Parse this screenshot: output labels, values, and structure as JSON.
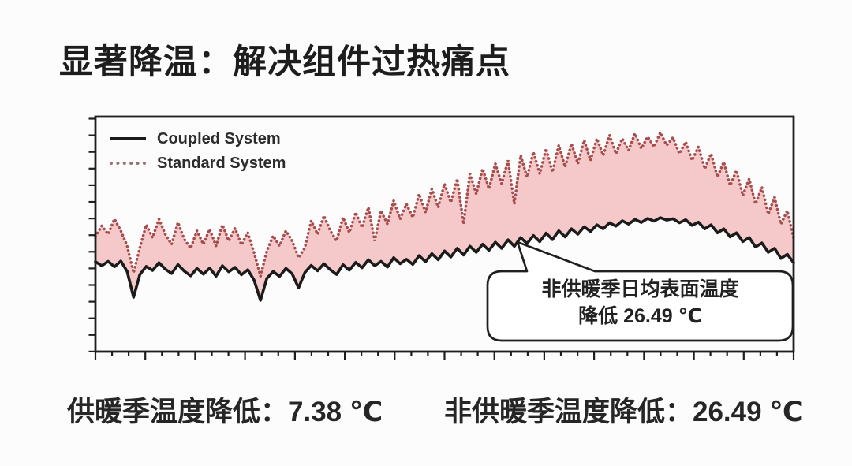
{
  "title": "显著降温：解决组件过热痛点",
  "legend": [
    {
      "label": "Coupled System"
    },
    {
      "label": "Standard System"
    }
  ],
  "callout": {
    "line1": "非供暖季日均表面温度",
    "line2": "降低 26.49 ℃"
  },
  "stats": {
    "heating": "供暖季温度降低：7.38 ℃",
    "non_heating": "非供暖季温度降低：26.49 ℃"
  },
  "colors": {
    "coupled_line": "#1b1b1b",
    "standard_line": "#a84d4d",
    "fill_between": "#f5c9c9",
    "frame": "#1e1e1e",
    "callout_border": "#1f1f1f"
  },
  "chart_data": {
    "type": "line",
    "title": "",
    "xlabel": "",
    "ylabel": "",
    "x_description": "time (days across a year, heating season at left, non-heating season mid-right); no tick labels shown",
    "y_description": "daily mean module surface temperature (°C, estimated scale; no tick labels shown)",
    "x_start": 0,
    "x_step": 1,
    "n_points": 111,
    "ylim": [
      5,
      75
    ],
    "grid": false,
    "legend_position": "top-left inside plot",
    "annotations": [
      {
        "text": "非供暖季日均表面温度 降低 26.49 ℃",
        "points_to": "gap between series near day 66"
      }
    ],
    "fill_between_series": true,
    "series": [
      {
        "name": "Coupled System",
        "style": "solid",
        "color": "#1b1b1b",
        "values": [
          31.8,
          30.6,
          31.9,
          30.3,
          32.0,
          28.9,
          21.2,
          28.0,
          30.4,
          29.2,
          31.5,
          29.6,
          28.3,
          30.9,
          29.0,
          27.6,
          29.8,
          28.1,
          29.9,
          27.5,
          30.6,
          28.8,
          30.1,
          27.9,
          29.4,
          26.3,
          20.3,
          26.8,
          28.9,
          27.4,
          29.8,
          28.2,
          24.0,
          28.6,
          30.7,
          29.1,
          31.2,
          29.4,
          28.0,
          30.9,
          29.3,
          31.6,
          30.0,
          32.4,
          30.6,
          31.9,
          30.2,
          33.0,
          31.2,
          32.5,
          31.0,
          33.6,
          31.8,
          34.2,
          32.4,
          35.0,
          33.2,
          35.8,
          33.8,
          36.4,
          34.6,
          37.0,
          35.2,
          37.6,
          35.8,
          38.3,
          36.4,
          39.0,
          37.2,
          39.6,
          37.8,
          40.3,
          38.4,
          41.0,
          39.2,
          41.6,
          40.0,
          42.2,
          40.8,
          42.8,
          41.6,
          43.4,
          42.4,
          44.0,
          43.0,
          44.4,
          43.5,
          44.7,
          43.9,
          44.9,
          44.2,
          44.6,
          43.4,
          44.3,
          42.6,
          43.6,
          41.6,
          42.8,
          40.4,
          41.6,
          39.2,
          40.4,
          37.8,
          39.0,
          36.2,
          37.4,
          34.6,
          35.8,
          32.8,
          34.0,
          31.5
        ]
      },
      {
        "name": "Standard System",
        "style": "dotted",
        "color": "#a84d4d",
        "values": [
          39.3,
          42.5,
          40.0,
          44.5,
          41.0,
          36.5,
          28.5,
          36.0,
          42.8,
          39.0,
          44.5,
          40.0,
          37.0,
          43.5,
          38.5,
          35.8,
          41.0,
          37.0,
          41.5,
          36.5,
          42.8,
          38.0,
          41.8,
          36.8,
          40.5,
          34.5,
          27.5,
          35.0,
          39.5,
          36.5,
          41.0,
          38.0,
          33.0,
          36.0,
          44.0,
          40.0,
          45.5,
          41.0,
          38.0,
          45.0,
          40.5,
          46.5,
          42.0,
          48.0,
          38.0,
          47.0,
          43.0,
          50.0,
          44.5,
          49.0,
          45.0,
          52.0,
          46.5,
          53.5,
          48.0,
          55.0,
          49.5,
          56.5,
          43.0,
          58.0,
          52.0,
          59.5,
          53.5,
          61.0,
          55.0,
          62.0,
          49.0,
          63.5,
          57.0,
          64.5,
          58.0,
          65.5,
          58.5,
          66.5,
          60.0,
          67.0,
          61.0,
          68.0,
          62.0,
          68.5,
          63.5,
          69.5,
          64.0,
          68.5,
          65.0,
          70.0,
          65.5,
          69.0,
          66.0,
          70.3,
          66.5,
          68.8,
          64.0,
          67.5,
          62.0,
          66.0,
          59.5,
          64.0,
          57.0,
          61.5,
          54.5,
          59.0,
          51.5,
          56.5,
          49.0,
          54.0,
          46.0,
          51.0,
          43.0,
          47.0,
          38.8
        ]
      }
    ]
  }
}
